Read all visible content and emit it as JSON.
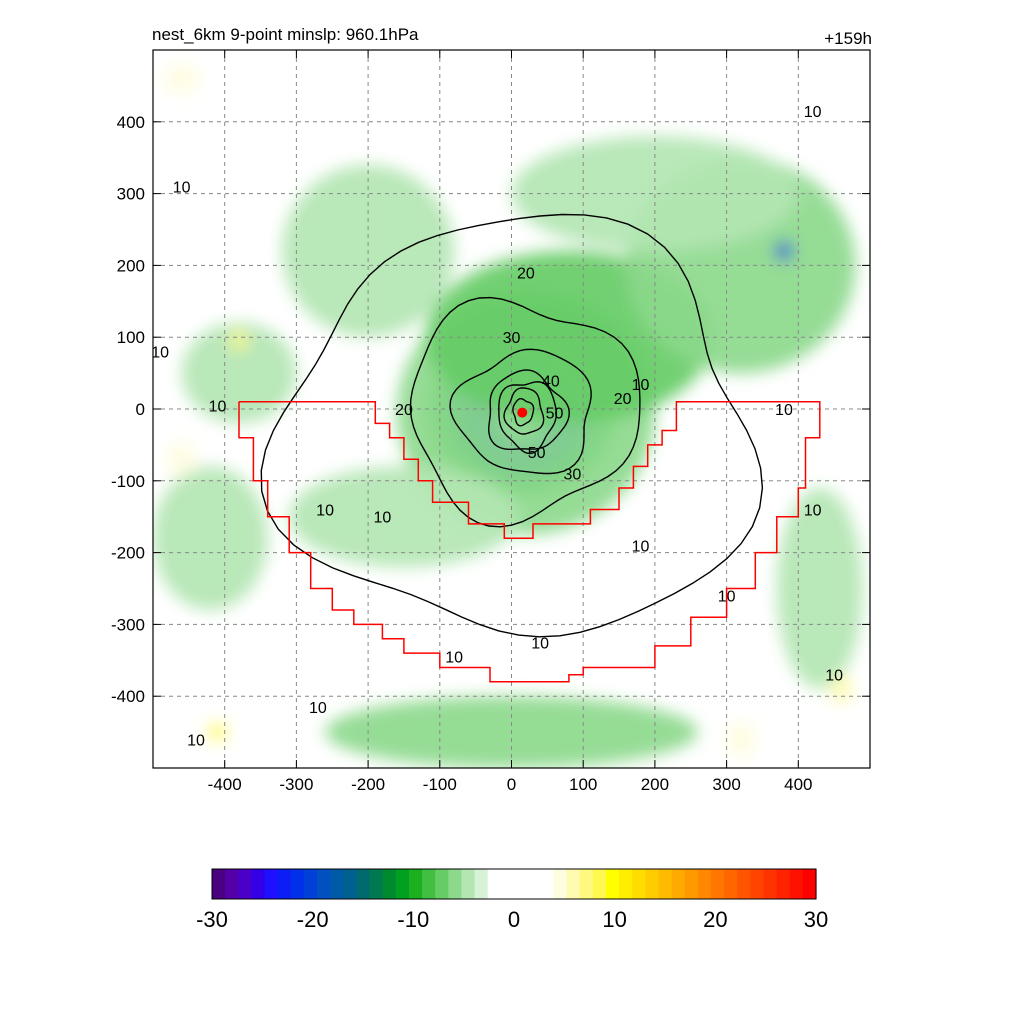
{
  "header": {
    "left_title": "nest_6km  9-point minslp: 960.1hPa",
    "right_title": "+159h"
  },
  "chart_data": {
    "type": "heatmap",
    "title": "nest_6km  9-point minslp: 960.1hPa",
    "subtitle": "+159h",
    "xlabel": "",
    "ylabel": "",
    "xlim": [
      -500,
      500
    ],
    "ylim": [
      -500,
      500
    ],
    "x_ticks": [
      -400,
      -300,
      -200,
      -100,
      0,
      100,
      200,
      300,
      400
    ],
    "y_ticks": [
      -400,
      -300,
      -200,
      -100,
      0,
      100,
      200,
      300,
      400
    ],
    "x_tick_labels": [
      "-400",
      "-300",
      "-200",
      "-100",
      "0",
      "100",
      "200",
      "300",
      "400"
    ],
    "y_tick_labels": [
      "-400",
      "-300",
      "-200",
      "-100",
      "0",
      "100",
      "200",
      "300",
      "400"
    ],
    "grid": true,
    "center_marker": {
      "x": 15,
      "y": -5,
      "color": "#ff0000"
    },
    "field_blobs": [
      {
        "x": 15,
        "y": 0,
        "rx": 130,
        "ry": 120,
        "value": -9
      },
      {
        "x": 15,
        "y": 0,
        "rx": 105,
        "ry": 100,
        "value": -16
      },
      {
        "x": 20,
        "y": 0,
        "rx": 80,
        "ry": 80,
        "value": -22
      },
      {
        "x": 15,
        "y": 0,
        "rx": 35,
        "ry": 45,
        "value": 0
      },
      {
        "x": 20,
        "y": -5,
        "rx": 180,
        "ry": 170,
        "value": -6
      },
      {
        "x": 80,
        "y": 100,
        "rx": 200,
        "ry": 120,
        "value": -7
      },
      {
        "x": 320,
        "y": 200,
        "rx": 160,
        "ry": 150,
        "value": -6
      },
      {
        "x": 200,
        "y": 300,
        "rx": 200,
        "ry": 80,
        "value": -5
      },
      {
        "x": -200,
        "y": 220,
        "rx": 120,
        "ry": 120,
        "value": -5
      },
      {
        "x": -150,
        "y": -150,
        "rx": 160,
        "ry": 70,
        "value": -5
      },
      {
        "x": 0,
        "y": -450,
        "rx": 260,
        "ry": 50,
        "value": -6
      },
      {
        "x": -420,
        "y": -180,
        "rx": 80,
        "ry": 100,
        "value": -5
      },
      {
        "x": 430,
        "y": -250,
        "rx": 60,
        "ry": 140,
        "value": -5
      },
      {
        "x": -380,
        "y": 50,
        "rx": 80,
        "ry": 70,
        "value": -4
      },
      {
        "x": 380,
        "y": 220,
        "rx": 12,
        "ry": 12,
        "value": -20
      },
      {
        "x": -380,
        "y": 95,
        "rx": 12,
        "ry": 14,
        "value": 7
      },
      {
        "x": -460,
        "y": -70,
        "rx": 20,
        "ry": 25,
        "value": 5
      },
      {
        "x": -410,
        "y": -450,
        "rx": 12,
        "ry": 12,
        "value": 8
      },
      {
        "x": -460,
        "y": 460,
        "rx": 25,
        "ry": 20,
        "value": 4
      },
      {
        "x": 320,
        "y": -460,
        "rx": 20,
        "ry": 25,
        "value": 5
      },
      {
        "x": 460,
        "y": -390,
        "rx": 15,
        "ry": 20,
        "value": 6
      }
    ],
    "contours": [
      {
        "level": 10,
        "cx": 10,
        "cy": -30,
        "rx": 330,
        "ry": 290
      },
      {
        "level": 20,
        "cx": 15,
        "cy": 0,
        "rx": 160,
        "ry": 150
      },
      {
        "level": 30,
        "cx": 20,
        "cy": -5,
        "rx": 95,
        "ry": 85
      },
      {
        "level": 40,
        "cx": 20,
        "cy": -5,
        "rx": 55,
        "ry": 55
      },
      {
        "level": 50,
        "cx": 22,
        "cy": -8,
        "rx": 40,
        "ry": 48
      },
      {
        "level": 60,
        "cx": 18,
        "cy": -4,
        "rx": 26,
        "ry": 32
      },
      {
        "level": 70,
        "cx": 16,
        "cy": -4,
        "rx": 14,
        "ry": 18
      }
    ],
    "contour_labels": [
      {
        "text": "10",
        "x": 420,
        "y": 415
      },
      {
        "text": "10",
        "x": -460,
        "y": 310
      },
      {
        "text": "10",
        "x": -490,
        "y": 80
      },
      {
        "text": "10",
        "x": -410,
        "y": 5
      },
      {
        "text": "10",
        "x": -260,
        "y": -140
      },
      {
        "text": "10",
        "x": -180,
        "y": -150
      },
      {
        "text": "10",
        "x": -80,
        "y": -345
      },
      {
        "text": "10",
        "x": 40,
        "y": -325
      },
      {
        "text": "10",
        "x": 180,
        "y": 35
      },
      {
        "text": "10",
        "x": 380,
        "y": 0
      },
      {
        "text": "10",
        "x": 420,
        "y": -140
      },
      {
        "text": "10",
        "x": 180,
        "y": -190
      },
      {
        "text": "10",
        "x": 300,
        "y": -260
      },
      {
        "text": "10",
        "x": -270,
        "y": -415
      },
      {
        "text": "10",
        "x": -440,
        "y": -460
      },
      {
        "text": "10",
        "x": 450,
        "y": -370
      },
      {
        "text": "20",
        "x": 20,
        "y": 190
      },
      {
        "text": "20",
        "x": -150,
        "y": 0
      },
      {
        "text": "20",
        "x": 155,
        "y": 15
      },
      {
        "text": "30",
        "x": 0,
        "y": 100
      },
      {
        "text": "30",
        "x": 85,
        "y": -90
      },
      {
        "text": "40",
        "x": 55,
        "y": 40
      },
      {
        "text": "50",
        "x": 60,
        "y": -5
      },
      {
        "text": "50",
        "x": 35,
        "y": -60
      }
    ],
    "region_outline": {
      "color": "#ff0000",
      "points": [
        [
          -380,
          10
        ],
        [
          -190,
          10
        ],
        [
          -190,
          -20
        ],
        [
          -170,
          -20
        ],
        [
          -170,
          -40
        ],
        [
          -150,
          -40
        ],
        [
          -150,
          -70
        ],
        [
          -130,
          -70
        ],
        [
          -130,
          -100
        ],
        [
          -110,
          -100
        ],
        [
          -110,
          -130
        ],
        [
          -60,
          -130
        ],
        [
          -60,
          -160
        ],
        [
          -10,
          -160
        ],
        [
          -10,
          -180
        ],
        [
          30,
          -180
        ],
        [
          30,
          -160
        ],
        [
          110,
          -160
        ],
        [
          110,
          -140
        ],
        [
          150,
          -140
        ],
        [
          150,
          -110
        ],
        [
          170,
          -110
        ],
        [
          170,
          -80
        ],
        [
          190,
          -80
        ],
        [
          190,
          -50
        ],
        [
          210,
          -50
        ],
        [
          210,
          -30
        ],
        [
          230,
          -30
        ],
        [
          230,
          10
        ],
        [
          430,
          10
        ],
        [
          430,
          -40
        ],
        [
          410,
          -40
        ],
        [
          410,
          -110
        ],
        [
          400,
          -110
        ],
        [
          400,
          -150
        ],
        [
          370,
          -150
        ],
        [
          370,
          -200
        ],
        [
          340,
          -200
        ],
        [
          340,
          -250
        ],
        [
          300,
          -250
        ],
        [
          300,
          -290
        ],
        [
          250,
          -290
        ],
        [
          250,
          -330
        ],
        [
          200,
          -330
        ],
        [
          200,
          -360
        ],
        [
          100,
          -360
        ],
        [
          100,
          -370
        ],
        [
          80,
          -370
        ],
        [
          80,
          -380
        ],
        [
          -30,
          -380
        ],
        [
          -30,
          -360
        ],
        [
          -100,
          -360
        ],
        [
          -100,
          -340
        ],
        [
          -150,
          -340
        ],
        [
          -150,
          -320
        ],
        [
          -180,
          -320
        ],
        [
          -180,
          -300
        ],
        [
          -220,
          -300
        ],
        [
          -220,
          -280
        ],
        [
          -250,
          -280
        ],
        [
          -250,
          -250
        ],
        [
          -280,
          -250
        ],
        [
          -280,
          -200
        ],
        [
          -310,
          -200
        ],
        [
          -310,
          -150
        ],
        [
          -340,
          -150
        ],
        [
          -340,
          -100
        ],
        [
          -360,
          -100
        ],
        [
          -360,
          -40
        ],
        [
          -380,
          -40
        ],
        [
          -380,
          10
        ]
      ]
    }
  },
  "colorbar": {
    "min": -30,
    "max": 30,
    "tick_labels": [
      "-30",
      "-20",
      "-10",
      "0",
      "10",
      "20",
      "30"
    ],
    "colors": [
      "#4b0082",
      "#5300a8",
      "#4a00c8",
      "#3300e6",
      "#1f10ff",
      "#0a1ef5",
      "#0030e8",
      "#0040d8",
      "#0050c0",
      "#005aa8",
      "#006090",
      "#006a70",
      "#007850",
      "#008a30",
      "#00a020",
      "#1ab020",
      "#40bf40",
      "#66cc66",
      "#8cd98c",
      "#b3e6b3",
      "#d8f2d8",
      "#ffffff",
      "#ffffff",
      "#ffffff",
      "#ffffff",
      "#ffffff",
      "#fffde0",
      "#fffbb0",
      "#fff980",
      "#fff850",
      "#ffff00",
      "#ffee00",
      "#ffdd00",
      "#ffcc00",
      "#ffbb00",
      "#ffaa00",
      "#ff9900",
      "#ff8800",
      "#ff7700",
      "#ff6600",
      "#ff5500",
      "#ff4400",
      "#ff3300",
      "#ff2200",
      "#ff1100",
      "#ff0000"
    ]
  }
}
